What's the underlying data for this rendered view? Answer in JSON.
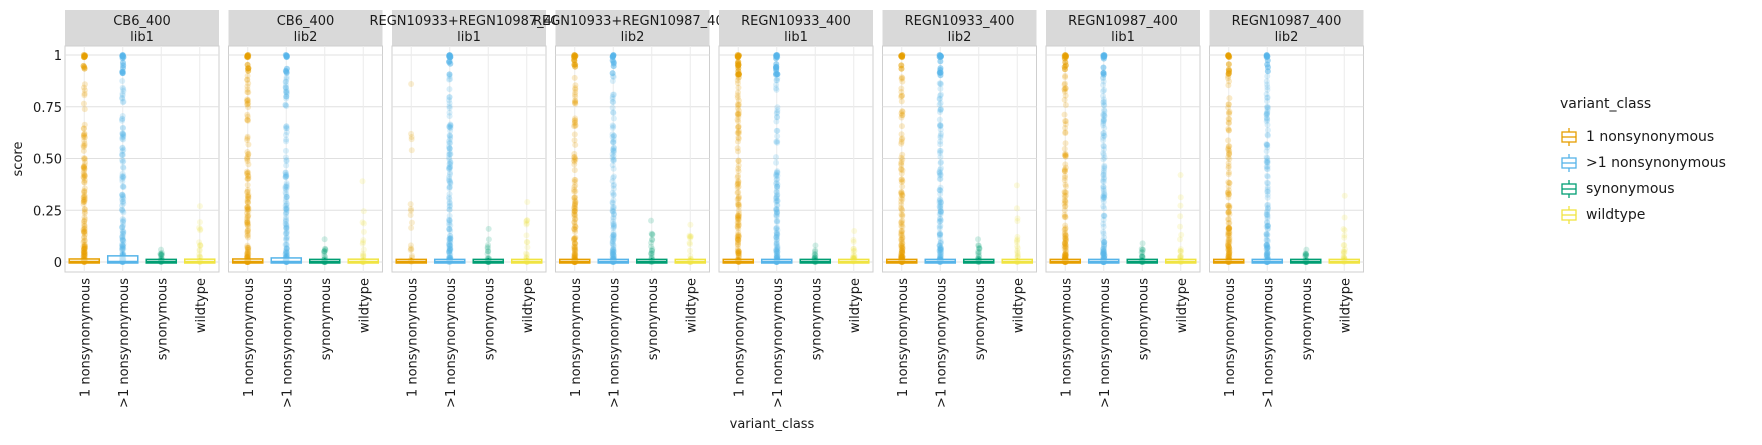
{
  "chart_data": {
    "type": "box",
    "facet_rows": [
      "lib1",
      "lib2"
    ],
    "facets": [
      {
        "antibody": "CB6_400",
        "library": "lib1",
        "series": [
          {
            "category": "1 nonsynonymous",
            "median": 0,
            "q3": 0.005,
            "whisker_high": 0.01,
            "outliers_max": 1.0
          },
          {
            "category": ">1 nonsynonymous",
            "median": 0,
            "q3": 0.02,
            "whisker_high": 0.04,
            "outliers_max": 1.0
          },
          {
            "category": "synonymous",
            "median": 0,
            "q3": 0.003,
            "whisker_high": 0.01,
            "outliers_max": 0.06
          },
          {
            "category": "wildtype",
            "median": 0,
            "q3": 0.004,
            "whisker_high": 0.01,
            "outliers_max": 0.27
          }
        ]
      },
      {
        "antibody": "CB6_400",
        "library": "lib2",
        "series": [
          {
            "category": "1 nonsynonymous",
            "median": 0,
            "q3": 0.005,
            "whisker_high": 0.01,
            "outliers_max": 1.0
          },
          {
            "category": ">1 nonsynonymous",
            "median": 0,
            "q3": 0.01,
            "whisker_high": 0.03,
            "outliers_max": 1.0
          },
          {
            "category": "synonymous",
            "median": 0,
            "q3": 0.003,
            "whisker_high": 0.01,
            "outliers_max": 0.11
          },
          {
            "category": "wildtype",
            "median": 0,
            "q3": 0.004,
            "whisker_high": 0.01,
            "outliers_max": 0.39
          }
        ]
      },
      {
        "antibody": "REGN10933+REGN10987_400",
        "library": "lib1",
        "series": [
          {
            "category": "1 nonsynonymous",
            "median": 0,
            "q3": 0.003,
            "whisker_high": 0.01,
            "outliers_max": 0.86
          },
          {
            "category": ">1 nonsynonymous",
            "median": 0,
            "q3": 0.003,
            "whisker_high": 0.01,
            "outliers_max": 1.0
          },
          {
            "category": "synonymous",
            "median": 0,
            "q3": 0.003,
            "whisker_high": 0.01,
            "outliers_max": 0.16
          },
          {
            "category": "wildtype",
            "median": 0,
            "q3": 0.003,
            "whisker_high": 0.01,
            "outliers_max": 0.29
          }
        ]
      },
      {
        "antibody": "REGN10933+REGN10987_400",
        "library": "lib2",
        "series": [
          {
            "category": "1 nonsynonymous",
            "median": 0,
            "q3": 0.003,
            "whisker_high": 0.01,
            "outliers_max": 1.0
          },
          {
            "category": ">1 nonsynonymous",
            "median": 0,
            "q3": 0.003,
            "whisker_high": 0.01,
            "outliers_max": 1.0
          },
          {
            "category": "synonymous",
            "median": 0,
            "q3": 0.003,
            "whisker_high": 0.01,
            "outliers_max": 0.2
          },
          {
            "category": "wildtype",
            "median": 0,
            "q3": 0.003,
            "whisker_high": 0.01,
            "outliers_max": 0.18
          }
        ]
      },
      {
        "antibody": "REGN10933_400",
        "library": "lib1",
        "series": [
          {
            "category": "1 nonsynonymous",
            "median": 0,
            "q3": 0.003,
            "whisker_high": 0.01,
            "outliers_max": 1.0
          },
          {
            "category": ">1 nonsynonymous",
            "median": 0,
            "q3": 0.003,
            "whisker_high": 0.01,
            "outliers_max": 1.0
          },
          {
            "category": "synonymous",
            "median": 0,
            "q3": 0.003,
            "whisker_high": 0.01,
            "outliers_max": 0.08
          },
          {
            "category": "wildtype",
            "median": 0,
            "q3": 0.003,
            "whisker_high": 0.01,
            "outliers_max": 0.15
          }
        ]
      },
      {
        "antibody": "REGN10933_400",
        "library": "lib2",
        "series": [
          {
            "category": "1 nonsynonymous",
            "median": 0,
            "q3": 0.003,
            "whisker_high": 0.01,
            "outliers_max": 1.0
          },
          {
            "category": ">1 nonsynonymous",
            "median": 0,
            "q3": 0.003,
            "whisker_high": 0.01,
            "outliers_max": 1.0
          },
          {
            "category": "synonymous",
            "median": 0,
            "q3": 0.003,
            "whisker_high": 0.01,
            "outliers_max": 0.11
          },
          {
            "category": "wildtype",
            "median": 0,
            "q3": 0.003,
            "whisker_high": 0.01,
            "outliers_max": 0.37
          }
        ]
      },
      {
        "antibody": "REGN10987_400",
        "library": "lib1",
        "series": [
          {
            "category": "1 nonsynonymous",
            "median": 0,
            "q3": 0.003,
            "whisker_high": 0.01,
            "outliers_max": 1.0
          },
          {
            "category": ">1 nonsynonymous",
            "median": 0,
            "q3": 0.003,
            "whisker_high": 0.01,
            "outliers_max": 1.0
          },
          {
            "category": "synonymous",
            "median": 0,
            "q3": 0.003,
            "whisker_high": 0.01,
            "outliers_max": 0.09
          },
          {
            "category": "wildtype",
            "median": 0,
            "q3": 0.003,
            "whisker_high": 0.01,
            "outliers_max": 0.42
          }
        ]
      },
      {
        "antibody": "REGN10987_400",
        "library": "lib2",
        "series": [
          {
            "category": "1 nonsynonymous",
            "median": 0,
            "q3": 0.003,
            "whisker_high": 0.01,
            "outliers_max": 1.0
          },
          {
            "category": ">1 nonsynonymous",
            "median": 0,
            "q3": 0.003,
            "whisker_high": 0.01,
            "outliers_max": 1.0
          },
          {
            "category": "synonymous",
            "median": 0,
            "q3": 0.003,
            "whisker_high": 0.01,
            "outliers_max": 0.06
          },
          {
            "category": "wildtype",
            "median": 0,
            "q3": 0.003,
            "whisker_high": 0.01,
            "outliers_max": 0.32
          }
        ]
      }
    ],
    "categories": [
      "1 nonsynonymous",
      ">1 nonsynonymous",
      "synonymous",
      "wildtype"
    ],
    "colors": {
      "1 nonsynonymous": "#E69F00",
      ">1 nonsynonymous": "#56B4E9",
      "synonymous": "#009E73",
      "wildtype": "#F0E442"
    },
    "xlabel": "variant_class",
    "ylabel": "score",
    "ylim": [
      0,
      1
    ],
    "yticks": [
      0,
      0.25,
      0.5,
      0.75,
      1
    ],
    "ytick_labels": [
      "0",
      "0.25",
      "0.50",
      "0.75",
      "1"
    ],
    "grid": true,
    "legend": {
      "title": "variant_class",
      "position": "right"
    }
  }
}
